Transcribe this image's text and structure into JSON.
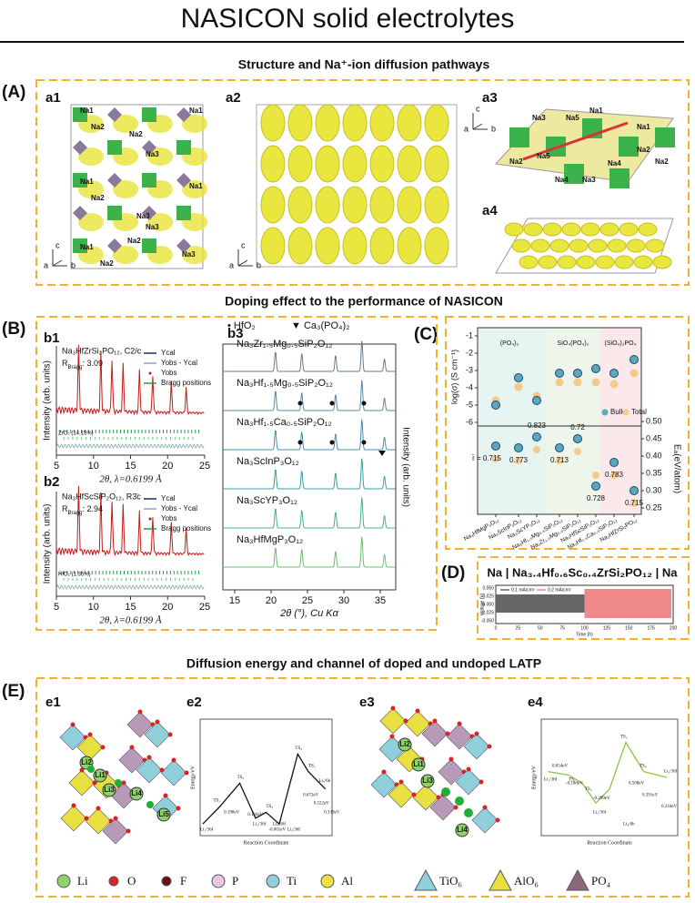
{
  "title": "NASICON solid electrolytes",
  "sections": [
    "Structure and Na⁺-ion diffusion pathways",
    "Doping effect to the performance of NASICON",
    "Diffusion energy and channel of doped and undoped LATP"
  ],
  "panel_labels": [
    "(A)",
    "(B)",
    "(C)",
    "(D)",
    "(E)"
  ],
  "subpanel_labels": [
    "a1",
    "a2",
    "a3",
    "a4",
    "b1",
    "b2",
    "b3",
    "e1",
    "e2",
    "e3",
    "e4"
  ],
  "a1": {
    "sites": [
      "Na1",
      "Na2",
      "Na1",
      "Na2",
      "Na3",
      "Na1",
      "Na2",
      "Na3",
      "Na1",
      "Na2",
      "Na3",
      "Na1",
      "Na2",
      "Na3"
    ],
    "axes": [
      "c",
      "a",
      "b"
    ]
  },
  "a2": {
    "axes": [
      "c",
      "a",
      "b"
    ]
  },
  "a3": {
    "sites": [
      "Na3",
      "Na2",
      "Na5",
      "Na1",
      "Na5",
      "Na1",
      "Na2",
      "Na4",
      "Na3",
      "Na4",
      "Na2"
    ],
    "axes": [
      "c",
      "a",
      "b"
    ]
  },
  "b1": {
    "formula": "Na₃HfZrSi₂PO₁₂, C2/c",
    "r": "R",
    "r_sub": "Bragg",
    "r_value": ": 3.09",
    "phase": "ZrO₂ (14.15%)",
    "legend": [
      "Ycal",
      "Yobs - Ycal",
      "Yobs",
      "Bragg positions"
    ],
    "ylabel": "Intensity (arb. units)",
    "xlabel": "2θ, λ=0.6199 Å",
    "xticks": [
      "5",
      "10",
      "15",
      "20",
      "25"
    ]
  },
  "b2": {
    "formula": "Na₃HfScSiP₂O₁₂, R3̄c",
    "r": "R",
    "r_sub": "Bragg",
    "r_value": ": 2.94",
    "phase": "HfO₂ (1.35%)",
    "legend": [
      "Ycal",
      "Yobs - Ycal",
      "Yobs",
      "Bragg positions"
    ],
    "ylabel": "Intensity (arb. units)",
    "xlabel": "2θ, λ=0.6199 Å",
    "xticks": [
      "5",
      "10",
      "15",
      "20",
      "25"
    ]
  },
  "b3": {
    "legend": [
      "• HfO₂",
      "▼ Ca₃(PO₄)₂"
    ],
    "traces": [
      "Na₃Zr₁.₅Mg₀.₅SiP₂O₁₂",
      "Na₃Hf₁.₅Mg₀.₅SiP₂O₁₂",
      "Na₃Hf₁.₅Ca₀.₅SiP₂O₁₂",
      "Na₃ScInP₃O₁₂",
      "Na₃ScYP₃O₁₂",
      "Na₃HfMgP₃O₁₂"
    ],
    "ylabel": "Intensity (arb. units)",
    "xlabel": "2θ (°), Cu Kα",
    "xticks": [
      "15",
      "20",
      "25",
      "30",
      "35"
    ]
  },
  "c": {
    "regions": [
      "(PO₄)₃",
      "SiO₄(PO₄)₂",
      "(SiO₄)₂PO₄"
    ],
    "ylabel": "log(σ) (S cm⁻¹)",
    "yticks": [
      "-1",
      "-2",
      "-3",
      "-4",
      "-5",
      "-6"
    ],
    "legend": [
      "Bulk",
      "Total"
    ],
    "y2label": "Eₐ(eV/atom)",
    "y2ticks": [
      "0.50",
      "0.45",
      "0.40",
      "0.35",
      "0.30",
      "0.25"
    ],
    "radii": [
      "r̄ = 0.715",
      "0.773",
      "0.823",
      "0.713",
      "0.72",
      "0.728",
      "0.783",
      "0.715"
    ],
    "categories": [
      "Na₃HfMgP₃O₁₂",
      "Na₃ScInP₃O₁₂",
      "Na₃ScYP₃O₁₂",
      "Na₃Hf₁.₅Mg₀.₅SiP₂O₁₂",
      "Na₃Zr₁.₅Mg₀.₅SiP₂O₁₂",
      "Na₃HfScSiP₂O₁₂",
      "Na₃Hf₁.₅Ca₀.₅SiP₂O₁₂",
      "Na₃HfZrSi₂PO₁₂"
    ]
  },
  "d": {
    "title": "Na | Na₃.₄Hf₀.₆Sc₀.₄ZrSi₂PO₁₂ | Na",
    "legend": [
      "0.1 mA/cm²",
      "0.2 mA/cm²"
    ],
    "ylabel": "Voltage (V)",
    "yticks": [
      "0.050",
      "0.025",
      "0.000",
      "-0.025",
      "-0.050"
    ],
    "xticks": [
      "0",
      "25",
      "50",
      "75",
      "100",
      "125",
      "150",
      "175",
      "200"
    ],
    "xlabel": "Time (h)"
  },
  "e1": {
    "sites": [
      "Li2",
      "Li1",
      "Li3",
      "Li4",
      "Li5"
    ]
  },
  "e3": {
    "sites": [
      "Li2",
      "Li1",
      "Li3",
      "Li4"
    ]
  },
  "e2": {
    "ylabel": "Energy/eV",
    "xlabel": "Reaction Coordinate",
    "states": [
      "TS₁",
      "TS₂",
      "TS₃",
      "TS₄",
      "TS₅"
    ],
    "energies": [
      "0.198eV",
      "0.134eV",
      "-0.001eV",
      "0.672eV",
      "0.522eV",
      "0.339eV"
    ],
    "sites": [
      "Li₁/36f",
      "Li₂/36f",
      "Li₃/36f",
      "Li₄/36f",
      "Li₅/6b"
    ]
  },
  "e4": {
    "ylabel": "Energy/eV",
    "xlabel": "Reaction Coordinate",
    "states": [
      "TS₁",
      "TS₂",
      "TS₃",
      "TS₄"
    ],
    "energies": [
      "0.054eV",
      "-0.188eV",
      "-0.299eV",
      "0.508eV",
      "0.391eV",
      "0.216eV"
    ],
    "sites": [
      "Li₁/36f",
      "Li₂/36f",
      "Li₃/36f",
      "Li₄/6b"
    ]
  },
  "legend_e": [
    "Li",
    "O",
    "F",
    "P",
    "Ti",
    "Al",
    "TiO₆",
    "AlO₆",
    "PO₄"
  ]
}
